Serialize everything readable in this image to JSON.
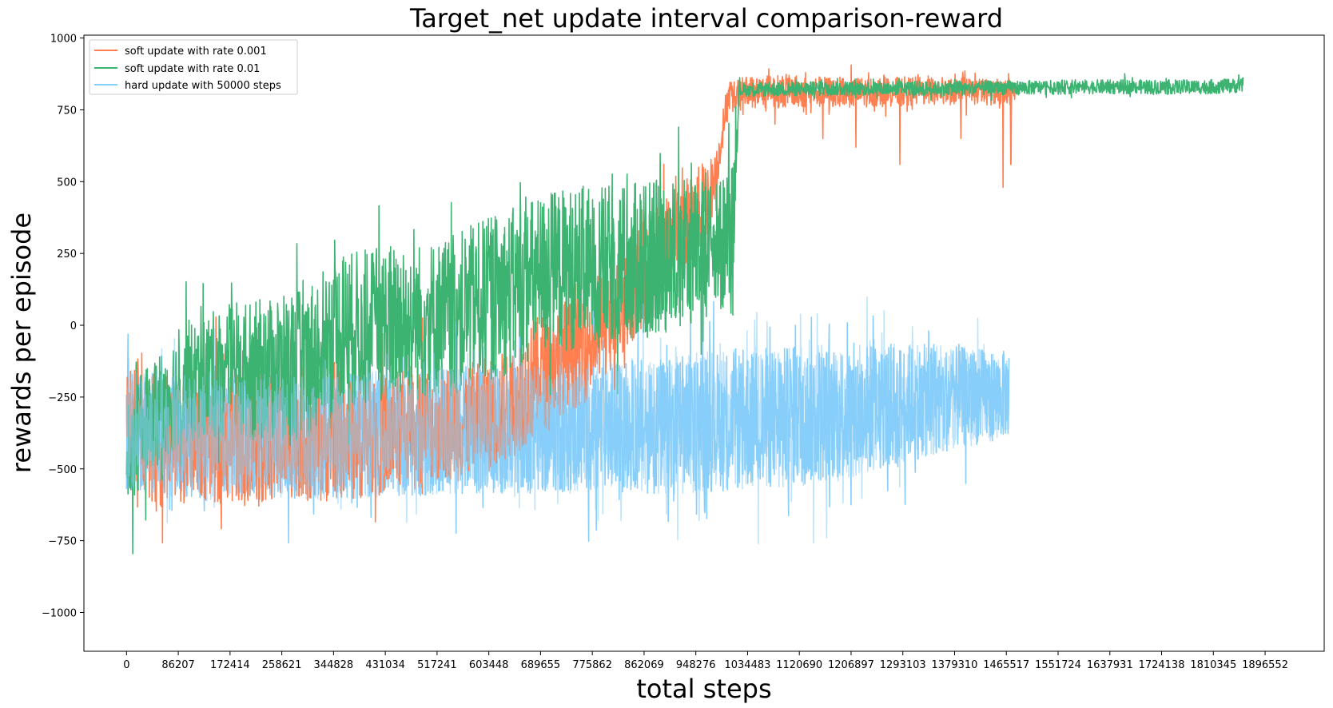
{
  "chart_data": {
    "type": "line",
    "title": "Target_net update interval comparison-reward",
    "xlabel": "total steps",
    "ylabel": "rewards per episode",
    "xlim": [
      -71000,
      1995000
    ],
    "ylim": [
      -1135,
      1010
    ],
    "xticks": [
      0,
      86207,
      172414,
      258621,
      344828,
      431034,
      517241,
      603448,
      689655,
      775862,
      862069,
      948276,
      1034483,
      1120690,
      1206897,
      1293103,
      1379310,
      1465517,
      1551724,
      1637931,
      1724138,
      1810345,
      1896552
    ],
    "xtick_labels": [
      "0",
      "86207",
      "172414",
      "258621",
      "344828",
      "431034",
      "517241",
      "603448",
      "689655",
      "775862",
      "862069",
      "948276",
      "1034483",
      "1120690",
      "1206897",
      "1293103",
      "1379310",
      "1465517",
      "1551724",
      "1637931",
      "1724138",
      "1810345",
      "1896552"
    ],
    "yticks": [
      -1000,
      -750,
      -500,
      -250,
      0,
      250,
      500,
      750,
      1000
    ],
    "ytick_labels": [
      "−1000",
      "−750",
      "−500",
      "−250",
      "0",
      "250",
      "500",
      "750",
      "1000"
    ],
    "legend_position": "top-left",
    "grid": false,
    "series": [
      {
        "name": "soft update with rate 0.001",
        "color": "#ff7f50",
        "points": [
          [
            0,
            -380
          ],
          [
            20000,
            -300
          ],
          [
            50000,
            -420
          ],
          [
            80000,
            -400
          ],
          [
            110000,
            -380
          ],
          [
            140000,
            -390
          ],
          [
            170000,
            -400
          ],
          [
            200000,
            -380
          ],
          [
            230000,
            -390
          ],
          [
            260000,
            -380
          ],
          [
            290000,
            -370
          ],
          [
            320000,
            -400
          ],
          [
            350000,
            -380
          ],
          [
            380000,
            -390
          ],
          [
            410000,
            -370
          ],
          [
            440000,
            -380
          ],
          [
            470000,
            -350
          ],
          [
            500000,
            -340
          ],
          [
            530000,
            -330
          ],
          [
            560000,
            -340
          ],
          [
            590000,
            -320
          ],
          [
            620000,
            -300
          ],
          [
            650000,
            -250
          ],
          [
            680000,
            -180
          ],
          [
            710000,
            -120
          ],
          [
            740000,
            -100
          ],
          [
            770000,
            -60
          ],
          [
            800000,
            20
          ],
          [
            830000,
            100
          ],
          [
            860000,
            180
          ],
          [
            890000,
            250
          ],
          [
            920000,
            330
          ],
          [
            950000,
            380
          ],
          [
            980000,
            500
          ],
          [
            1000000,
            780
          ],
          [
            1030000,
            810
          ],
          [
            1100000,
            815
          ],
          [
            1200000,
            810
          ],
          [
            1300000,
            815
          ],
          [
            1400000,
            815
          ],
          [
            1480000,
            810
          ]
        ],
        "amplitudes": [
          [
            0,
            230
          ],
          [
            300000,
            230
          ],
          [
            600000,
            200
          ],
          [
            800000,
            200
          ],
          [
            960000,
            160
          ],
          [
            990000,
            60
          ],
          [
            1480000,
            45
          ]
        ],
        "dips": [
          [
            982000,
            400
          ],
          [
            1080000,
            700
          ],
          [
            1160000,
            650
          ],
          [
            1215000,
            620
          ],
          [
            1288000,
            560
          ],
          [
            1390000,
            650
          ],
          [
            1460000,
            480
          ],
          [
            1473000,
            560
          ]
        ]
      },
      {
        "name": "soft update with rate 0.01",
        "color": "#3cb371",
        "points": [
          [
            0,
            -500
          ],
          [
            30000,
            -330
          ],
          [
            60000,
            -270
          ],
          [
            90000,
            -210
          ],
          [
            120000,
            -190
          ],
          [
            150000,
            -170
          ],
          [
            180000,
            -150
          ],
          [
            210000,
            -160
          ],
          [
            240000,
            -150
          ],
          [
            270000,
            -160
          ],
          [
            300000,
            -130
          ],
          [
            330000,
            -60
          ],
          [
            360000,
            -20
          ],
          [
            390000,
            -10
          ],
          [
            420000,
            0
          ],
          [
            450000,
            20
          ],
          [
            480000,
            10
          ],
          [
            510000,
            20
          ],
          [
            540000,
            30
          ],
          [
            570000,
            60
          ],
          [
            600000,
            90
          ],
          [
            630000,
            110
          ],
          [
            660000,
            140
          ],
          [
            690000,
            170
          ],
          [
            720000,
            190
          ],
          [
            750000,
            200
          ],
          [
            780000,
            200
          ],
          [
            810000,
            210
          ],
          [
            840000,
            220
          ],
          [
            870000,
            230
          ],
          [
            900000,
            240
          ],
          [
            930000,
            250
          ],
          [
            960000,
            260
          ],
          [
            990000,
            270
          ],
          [
            1010000,
            350
          ],
          [
            1020000,
            820
          ],
          [
            1200000,
            825
          ],
          [
            1400000,
            825
          ],
          [
            1600000,
            830
          ],
          [
            1800000,
            830
          ],
          [
            1860000,
            835
          ]
        ],
        "amplitudes": [
          [
            0,
            190
          ],
          [
            100000,
            210
          ],
          [
            300000,
            270
          ],
          [
            500000,
            280
          ],
          [
            700000,
            290
          ],
          [
            900000,
            270
          ],
          [
            1010000,
            230
          ],
          [
            1020000,
            25
          ],
          [
            1860000,
            25
          ]
        ]
      },
      {
        "name": "hard update with 50000 steps",
        "color": "#87cefa",
        "points": [
          [
            0,
            -360
          ],
          [
            50000,
            -380
          ],
          [
            100000,
            -390
          ],
          [
            200000,
            -380
          ],
          [
            300000,
            -390
          ],
          [
            400000,
            -380
          ],
          [
            500000,
            -370
          ],
          [
            600000,
            -360
          ],
          [
            700000,
            -360
          ],
          [
            800000,
            -350
          ],
          [
            900000,
            -350
          ],
          [
            1000000,
            -330
          ],
          [
            1100000,
            -320
          ],
          [
            1200000,
            -300
          ],
          [
            1300000,
            -270
          ],
          [
            1400000,
            -250
          ],
          [
            1470000,
            -240
          ]
        ],
        "amplitudes": [
          [
            0,
            210
          ],
          [
            400000,
            220
          ],
          [
            800000,
            230
          ],
          [
            1000000,
            250
          ],
          [
            1200000,
            240
          ],
          [
            1470000,
            150
          ]
        ]
      }
    ]
  }
}
